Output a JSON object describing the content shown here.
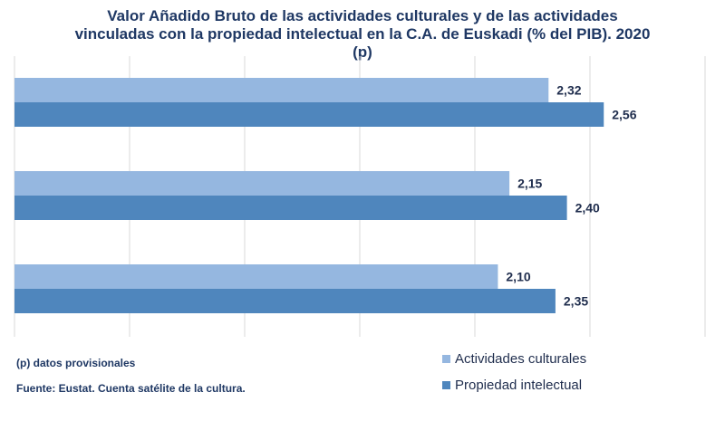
{
  "chart_data": {
    "type": "bar",
    "orientation": "horizontal",
    "title_lines": [
      "Valor Añadido Bruto de las actividades culturales y de las actividades",
      "vinculadas con la propiedad intelectual en la C.A. de Euskadi (% del PIB). 2020",
      "(p)"
    ],
    "categories": [
      "",
      "",
      ""
    ],
    "series": [
      {
        "name": "Actividades culturales",
        "values": [
          2.32,
          2.15,
          2.1
        ],
        "labels": [
          "2,32",
          "2,15",
          "2,10"
        ],
        "color": "#95b7e0"
      },
      {
        "name": "Propiedad intelectual",
        "values": [
          2.56,
          2.4,
          2.35
        ],
        "labels": [
          "2,56",
          "2,40",
          "2,35"
        ],
        "color": "#4f86bd"
      }
    ],
    "xlim": [
      0,
      3.0
    ],
    "grid": true,
    "legend_position": "bottom-right"
  },
  "footer": {
    "note": "(p) datos provisionales",
    "source": "Fuente: Eustat. Cuenta satélite de la cultura."
  }
}
